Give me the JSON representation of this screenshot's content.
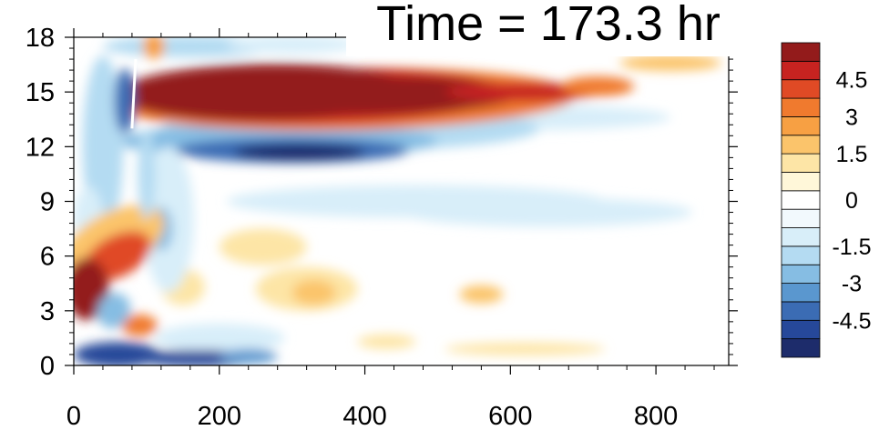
{
  "chart_data": {
    "type": "heatmap",
    "title": "Time = 173.3 hr",
    "xlim": [
      0,
      900
    ],
    "ylim": [
      0,
      18
    ],
    "x_ticks": [
      0,
      200,
      400,
      600,
      800
    ],
    "y_ticks": [
      0,
      3,
      6,
      9,
      12,
      15,
      18
    ],
    "x_tick_labels": [
      "0",
      "200",
      "400",
      "600",
      "800"
    ],
    "y_tick_labels": [
      "0",
      "3",
      "6",
      "9",
      "12",
      "15",
      "18"
    ],
    "colorbar": {
      "levels": [
        -5.25,
        -4.5,
        -3.75,
        -3,
        -2.25,
        -1.5,
        -0.75,
        -0.25,
        0.25,
        0.75,
        1.5,
        2.25,
        3,
        3.75,
        4.5,
        5.25
      ],
      "labels": [
        "4.5",
        "3",
        "1.5",
        "0",
        "-1.5",
        "-3",
        "-4.5"
      ],
      "label_values": [
        4.5,
        3,
        1.5,
        0,
        -1.5,
        -3,
        -4.5
      ],
      "colors": [
        "#1d2c6b",
        "#26489a",
        "#3b6cb4",
        "#5a97cf",
        "#86bde3",
        "#b4dbf2",
        "#d8eef9",
        "#f2f9fd",
        "#ffffff",
        "#fff7d9",
        "#fde5a6",
        "#fbc46b",
        "#f7a043",
        "#f07a2e",
        "#e04a25",
        "#c72320",
        "#931b1b"
      ]
    },
    "features": [
      {
        "name": "upper positive band",
        "sign": "positive",
        "x_range": [
          80,
          750
        ],
        "y_range": [
          13.2,
          16.8
        ],
        "peak": 6
      },
      {
        "name": "negative band below",
        "sign": "negative",
        "x_range": [
          90,
          620
        ],
        "y_range": [
          11.0,
          12.8
        ],
        "peak": -5.5
      },
      {
        "name": "left positive lobe",
        "sign": "positive",
        "x_range": [
          0,
          50
        ],
        "y_range": [
          2.5,
          5.5
        ],
        "peak": 6
      },
      {
        "name": "bottom negative strip",
        "sign": "negative",
        "x_range": [
          0,
          260
        ],
        "y_range": [
          0,
          1
        ],
        "peak": -5
      }
    ]
  }
}
